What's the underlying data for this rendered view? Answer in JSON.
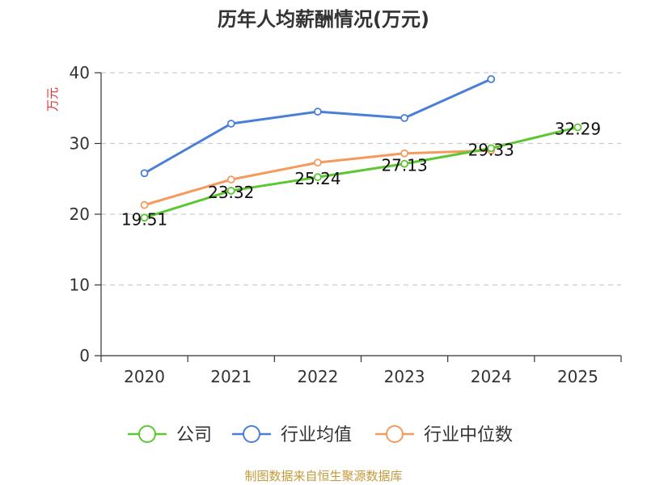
{
  "chart_data": {
    "type": "line",
    "title": "历年人均薪酬情况(万元)",
    "ylabel": "万元",
    "xlabel": "",
    "categories": [
      "2020",
      "2021",
      "2022",
      "2023",
      "2024",
      "2025"
    ],
    "ylim": [
      0,
      40
    ],
    "yticks": [
      0,
      10,
      20,
      30,
      40
    ],
    "grid": true,
    "legend_position": "bottom",
    "series": [
      {
        "name": "公司",
        "color": "#5dc632",
        "values": [
          19.51,
          23.32,
          25.24,
          27.13,
          29.33,
          32.29
        ],
        "labels": [
          "19.51",
          "23.32",
          "25.24",
          "27.13",
          "29.33",
          "32.29"
        ]
      },
      {
        "name": "行业均值",
        "color": "#4a7fd8",
        "values": [
          25.8,
          32.8,
          34.5,
          33.6,
          39.1,
          null
        ]
      },
      {
        "name": "行业中位数",
        "color": "#f59a5c",
        "values": [
          21.3,
          24.9,
          27.3,
          28.6,
          29.0,
          null
        ]
      }
    ]
  },
  "source": "制图数据来自恒生聚源数据库"
}
